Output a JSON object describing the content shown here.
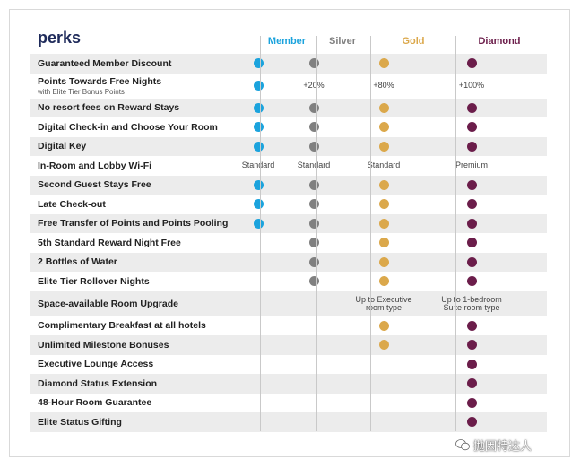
{
  "title": "perks",
  "tiers": [
    {
      "name": "Member",
      "color": "#1ba3dd"
    },
    {
      "name": "Silver",
      "color": "#808080"
    },
    {
      "name": "Gold",
      "color": "#dba84b"
    },
    {
      "name": "Diamond",
      "color": "#6b1d4a"
    }
  ],
  "rows": [
    {
      "perk": "Guaranteed Member Discount",
      "cells": [
        "dot",
        "dot",
        "dot",
        "dot"
      ]
    },
    {
      "perk": "Points Towards Free Nights",
      "sub": "with Elite Tier Bonus Points",
      "cells": [
        "dot",
        "+20%",
        "+80%",
        "+100%"
      ]
    },
    {
      "perk": "No resort fees on Reward Stays",
      "cells": [
        "dot",
        "dot",
        "dot",
        "dot"
      ]
    },
    {
      "perk": "Digital Check-in and Choose Your Room",
      "cells": [
        "dot",
        "dot",
        "dot",
        "dot"
      ]
    },
    {
      "perk": "Digital Key",
      "cells": [
        "dot",
        "dot",
        "dot",
        "dot"
      ]
    },
    {
      "perk": "In-Room and Lobby Wi-Fi",
      "cells": [
        "Standard",
        "Standard",
        "Standard",
        "Premium"
      ]
    },
    {
      "perk": "Second Guest Stays Free",
      "cells": [
        "dot",
        "dot",
        "dot",
        "dot"
      ]
    },
    {
      "perk": "Late Check-out",
      "cells": [
        "dot",
        "dot",
        "dot",
        "dot"
      ]
    },
    {
      "perk": "Free Transfer of Points and Points Pooling",
      "cells": [
        "dot",
        "dot",
        "dot",
        "dot"
      ]
    },
    {
      "perk": "5th Standard Reward Night Free",
      "cells": [
        "",
        "dot",
        "dot",
        "dot"
      ]
    },
    {
      "perk": "2 Bottles of Water",
      "cells": [
        "",
        "dot",
        "dot",
        "dot"
      ]
    },
    {
      "perk": "Elite Tier Rollover Nights",
      "cells": [
        "",
        "dot",
        "dot",
        "dot"
      ]
    },
    {
      "perk": "Space-available Room Upgrade",
      "cells": [
        "",
        "",
        "Up to Executive room type",
        "Up to 1-bedroom Suite room type"
      ]
    },
    {
      "perk": "Complimentary Breakfast at all hotels",
      "cells": [
        "",
        "",
        "dot",
        "dot"
      ]
    },
    {
      "perk": "Unlimited Milestone Bonuses",
      "cells": [
        "",
        "",
        "dot",
        "dot"
      ]
    },
    {
      "perk": "Executive Lounge Access",
      "cells": [
        "",
        "",
        "",
        "dot"
      ]
    },
    {
      "perk": "Diamond Status Extension",
      "cells": [
        "",
        "",
        "",
        "dot"
      ]
    },
    {
      "perk": "48-Hour Room Guarantee",
      "cells": [
        "",
        "",
        "",
        "dot"
      ]
    },
    {
      "perk": "Elite Status Gifting",
      "cells": [
        "",
        "",
        "",
        "dot"
      ]
    }
  ],
  "watermark": "抛因特达人"
}
